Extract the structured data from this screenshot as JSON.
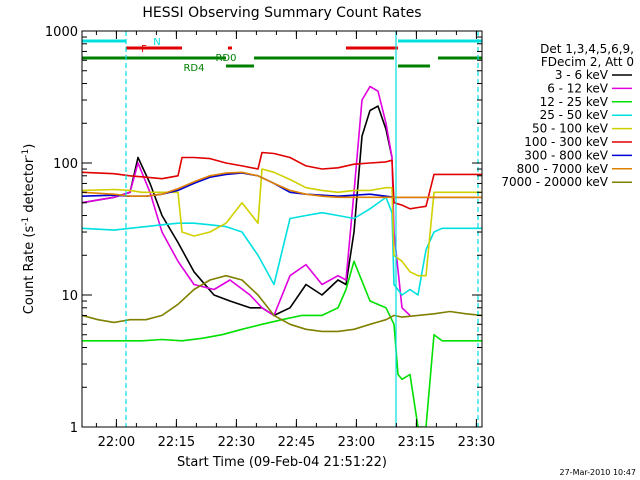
{
  "chart_data": {
    "type": "line",
    "title": "HESSI Observing Summary Count Rates",
    "xlabel": "Start Time (09-Feb-04 21:51:22)",
    "ylabel": "Count Rate (s⁻¹ detector⁻¹)",
    "ylabel_parts": [
      "Count Rate (s",
      "-1",
      " detector",
      "-1",
      ")"
    ],
    "x_unit": "minutes after 21:51:22",
    "xlim": [
      0,
      100
    ],
    "ylim": [
      1,
      1000
    ],
    "y_scale": "log",
    "x_ticks": [
      {
        "x": 8.6,
        "label": "22:00"
      },
      {
        "x": 23.6,
        "label": "22:15"
      },
      {
        "x": 38.6,
        "label": "22:30"
      },
      {
        "x": 53.6,
        "label": "22:45"
      },
      {
        "x": 68.6,
        "label": "23:00"
      },
      {
        "x": 83.6,
        "label": "23:15"
      },
      {
        "x": 98.6,
        "label": "23:30"
      }
    ],
    "y_ticks": [
      {
        "y": 1,
        "label": "1"
      },
      {
        "y": 10,
        "label": "10"
      },
      {
        "y": 100,
        "label": "100"
      },
      {
        "y": 1000,
        "label": "1000"
      }
    ],
    "legend_title": [
      "Det 1,3,4,5,6,9,",
      "FDecim 2, Att 0"
    ],
    "legend_position": "right",
    "series": [
      {
        "name": "3 - 6 keV",
        "color": "#000000",
        "x": [
          0,
          8,
          12,
          14,
          17,
          20,
          24,
          28,
          33,
          37,
          42,
          45,
          48,
          52,
          56,
          60,
          64,
          66,
          68,
          70,
          72,
          74,
          76,
          77.5
        ],
        "y": [
          50,
          55,
          60,
          110,
          70,
          40,
          25,
          15,
          10,
          9,
          8,
          8,
          7,
          8,
          12,
          10,
          13,
          12,
          30,
          160,
          250,
          270,
          180,
          110
        ]
      },
      {
        "name": "6 - 12 keV",
        "color": "#e000e0",
        "x": [
          0,
          8,
          12,
          14,
          17,
          20,
          24,
          28,
          33,
          37,
          42,
          45,
          48,
          52,
          56,
          60,
          64,
          66,
          68,
          70,
          72,
          74,
          76,
          77.5,
          78,
          80,
          82
        ],
        "y": [
          50,
          55,
          60,
          100,
          60,
          30,
          18,
          12,
          11,
          13,
          10,
          8,
          7,
          14,
          17,
          12,
          14,
          13,
          60,
          300,
          380,
          350,
          200,
          110,
          30,
          8,
          7
        ]
      },
      {
        "name": "12 - 25 keV",
        "color": "#00e000",
        "x": [
          0,
          5,
          10,
          15,
          20,
          25,
          30,
          35,
          40,
          45,
          50,
          55,
          60,
          64,
          66,
          68,
          72,
          76,
          78,
          79,
          80,
          82,
          84,
          86,
          88,
          90,
          95,
          100
        ],
        "y": [
          4.5,
          4.5,
          4.5,
          4.5,
          4.6,
          4.5,
          4.7,
          5,
          5.5,
          6,
          6.5,
          7,
          7,
          8,
          11,
          18,
          9,
          8,
          6,
          2.5,
          2.3,
          2.5,
          1,
          1,
          5,
          4.5,
          4.5,
          4.5
        ]
      },
      {
        "name": "25 - 50 keV",
        "color": "#00e0e0",
        "x": [
          0,
          8,
          12,
          16,
          20,
          24,
          28,
          32,
          36,
          40,
          44,
          48,
          52,
          56,
          60,
          64,
          68,
          72,
          76,
          77.5,
          78,
          80,
          82,
          84,
          86,
          88,
          90,
          95,
          100
        ],
        "y": [
          32,
          31,
          32,
          33,
          34,
          35,
          35,
          34,
          33,
          30,
          20,
          12,
          38,
          40,
          42,
          40,
          38,
          45,
          55,
          42,
          12,
          10,
          11,
          10,
          22,
          30,
          32,
          32,
          32
        ]
      },
      {
        "name": "50 - 100 keV",
        "color": "#d0d000",
        "x": [
          0,
          8,
          12,
          15,
          20,
          24,
          25,
          28,
          32,
          36,
          40,
          44,
          45,
          48,
          52,
          56,
          60,
          64,
          68,
          72,
          76,
          77.5,
          78,
          80,
          82,
          84,
          86,
          88,
          90,
          95,
          100
        ],
        "y": [
          62,
          63,
          62,
          60,
          60,
          60,
          30,
          28,
          30,
          35,
          50,
          35,
          90,
          85,
          75,
          65,
          62,
          60,
          62,
          62,
          65,
          65,
          20,
          18,
          15,
          14,
          14,
          60,
          60,
          60,
          60
        ]
      },
      {
        "name": "100 - 300 keV",
        "color": "#e00000",
        "x": [
          0,
          8,
          12,
          16,
          20,
          24,
          25,
          28,
          32,
          36,
          40,
          44,
          45,
          48,
          52,
          56,
          60,
          64,
          68,
          72,
          76,
          77.5,
          78,
          80,
          82,
          84,
          86,
          88,
          90,
          95,
          100
        ],
        "y": [
          85,
          83,
          80,
          78,
          76,
          80,
          110,
          110,
          108,
          100,
          95,
          90,
          120,
          118,
          110,
          95,
          90,
          92,
          98,
          100,
          102,
          105,
          50,
          48,
          45,
          46,
          47,
          82,
          82,
          82,
          82
        ]
      },
      {
        "name": "300 - 800 keV",
        "color": "#0000d0",
        "x": [
          0,
          8,
          12,
          16,
          20,
          24,
          28,
          32,
          36,
          40,
          44,
          48,
          52,
          56,
          60,
          64,
          68,
          72,
          76,
          78,
          82,
          86,
          90,
          95,
          100
        ],
        "y": [
          56,
          57,
          56,
          56,
          58,
          62,
          70,
          78,
          82,
          84,
          80,
          70,
          60,
          58,
          57,
          56,
          57,
          58,
          56,
          55,
          55,
          55,
          55,
          55,
          55
        ]
      },
      {
        "name": "800 - 7000 keV",
        "color": "#e08000",
        "x": [
          0,
          8,
          12,
          16,
          20,
          24,
          28,
          32,
          36,
          40,
          44,
          48,
          52,
          56,
          60,
          64,
          68,
          72,
          76,
          78,
          82,
          86,
          90,
          95,
          100
        ],
        "y": [
          60,
          58,
          56,
          56,
          58,
          64,
          72,
          80,
          84,
          85,
          80,
          70,
          62,
          58,
          56,
          55,
          55,
          55,
          55,
          55,
          55,
          55,
          55,
          55,
          55
        ]
      },
      {
        "name": "7000 - 20000 keV",
        "color": "#808000",
        "x": [
          0,
          4,
          8,
          12,
          16,
          20,
          24,
          28,
          32,
          36,
          40,
          44,
          48,
          52,
          56,
          60,
          64,
          68,
          72,
          76,
          78,
          80,
          84,
          88,
          92,
          96,
          100
        ],
        "y": [
          7,
          6.5,
          6.2,
          6.5,
          6.5,
          7,
          8.5,
          11,
          13,
          14,
          13,
          10,
          7,
          6,
          5.5,
          5.3,
          5.3,
          5.5,
          6,
          6.5,
          7,
          6.8,
          7,
          7.2,
          7.5,
          7.2,
          7
        ]
      }
    ],
    "status_bars": [
      {
        "label": "N",
        "color": "#00e0e0",
        "segments": [
          [
            0,
            11
          ],
          [
            79,
            100
          ]
        ]
      },
      {
        "label": "F",
        "color": "#e00000",
        "segments": [
          [
            11,
            25
          ],
          [
            36.5,
            37.5
          ],
          [
            66,
            79
          ]
        ]
      },
      {
        "label": "RD0",
        "color": "#008000",
        "segments": [
          [
            0,
            36
          ],
          [
            43,
            78
          ],
          [
            89,
            100
          ]
        ]
      },
      {
        "label": "RD4",
        "color": "#008000",
        "segments": [
          [
            36,
            43
          ],
          [
            79,
            87
          ]
        ]
      }
    ],
    "vertical_markers": [
      {
        "x": 11,
        "color": "#00e0e0",
        "style": "dashed"
      },
      {
        "x": 78.5,
        "color": "#00e0e0",
        "style": "solid"
      },
      {
        "x": 99,
        "color": "#00e0e0",
        "style": "dashed"
      }
    ],
    "footer_date": "27-Mar-2010 10:47"
  }
}
